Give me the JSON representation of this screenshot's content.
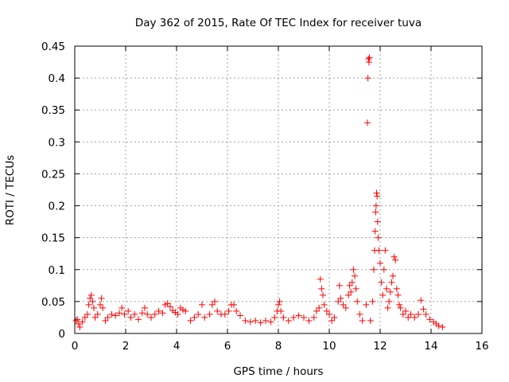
{
  "chart_data": {
    "type": "scatter",
    "title": "Day 362 of 2015, Rate Of TEC Index for receiver tuva",
    "xlabel": "GPS time / hours",
    "ylabel": "ROTI / TECUs",
    "xlim": [
      0,
      16
    ],
    "ylim": [
      0,
      0.45
    ],
    "xticks": [
      0,
      2,
      4,
      6,
      8,
      10,
      12,
      14,
      16
    ],
    "yticks": [
      0,
      0.05,
      0.1,
      0.15,
      0.2,
      0.25,
      0.3,
      0.35,
      0.4,
      0.45
    ],
    "xtick_labels": [
      "0",
      "2",
      "4",
      "6",
      "8",
      "10",
      "12",
      "14",
      "16"
    ],
    "ytick_labels": [
      "0",
      "0.05",
      "0.1",
      "0.15",
      "0.2",
      "0.25",
      "0.3",
      "0.35",
      "0.4",
      "0.45"
    ],
    "grid": true,
    "marker": "+",
    "series_color": "#ff0000",
    "series": [
      {
        "name": "ROTI",
        "points": [
          [
            0.05,
            0.02
          ],
          [
            0.1,
            0.022
          ],
          [
            0.15,
            0.015
          ],
          [
            0.2,
            0.01
          ],
          [
            0.3,
            0.018
          ],
          [
            0.4,
            0.025
          ],
          [
            0.5,
            0.03
          ],
          [
            0.55,
            0.045
          ],
          [
            0.6,
            0.055
          ],
          [
            0.65,
            0.06
          ],
          [
            0.7,
            0.05
          ],
          [
            0.75,
            0.04
          ],
          [
            0.8,
            0.025
          ],
          [
            0.9,
            0.03
          ],
          [
            1.0,
            0.045
          ],
          [
            1.05,
            0.055
          ],
          [
            1.1,
            0.04
          ],
          [
            1.2,
            0.02
          ],
          [
            1.3,
            0.025
          ],
          [
            1.45,
            0.03
          ],
          [
            1.6,
            0.028
          ],
          [
            1.75,
            0.032
          ],
          [
            1.85,
            0.04
          ],
          [
            1.95,
            0.03
          ],
          [
            2.1,
            0.035
          ],
          [
            2.2,
            0.025
          ],
          [
            2.35,
            0.03
          ],
          [
            2.5,
            0.022
          ],
          [
            2.65,
            0.032
          ],
          [
            2.75,
            0.04
          ],
          [
            2.85,
            0.03
          ],
          [
            3.0,
            0.025
          ],
          [
            3.15,
            0.03
          ],
          [
            3.3,
            0.035
          ],
          [
            3.45,
            0.032
          ],
          [
            3.55,
            0.045
          ],
          [
            3.65,
            0.047
          ],
          [
            3.75,
            0.042
          ],
          [
            3.85,
            0.036
          ],
          [
            3.95,
            0.033
          ],
          [
            4.05,
            0.03
          ],
          [
            4.15,
            0.04
          ],
          [
            4.25,
            0.037
          ],
          [
            4.35,
            0.035
          ],
          [
            4.55,
            0.02
          ],
          [
            4.7,
            0.025
          ],
          [
            4.85,
            0.03
          ],
          [
            5.0,
            0.045
          ],
          [
            5.1,
            0.025
          ],
          [
            5.3,
            0.03
          ],
          [
            5.4,
            0.045
          ],
          [
            5.5,
            0.05
          ],
          [
            5.6,
            0.035
          ],
          [
            5.75,
            0.03
          ],
          [
            5.9,
            0.03
          ],
          [
            6.05,
            0.035
          ],
          [
            6.15,
            0.045
          ],
          [
            6.25,
            0.045
          ],
          [
            6.35,
            0.035
          ],
          [
            6.5,
            0.028
          ],
          [
            6.7,
            0.02
          ],
          [
            6.9,
            0.018
          ],
          [
            7.1,
            0.02
          ],
          [
            7.3,
            0.017
          ],
          [
            7.5,
            0.02
          ],
          [
            7.7,
            0.018
          ],
          [
            7.85,
            0.025
          ],
          [
            7.95,
            0.035
          ],
          [
            8.0,
            0.045
          ],
          [
            8.05,
            0.05
          ],
          [
            8.1,
            0.035
          ],
          [
            8.2,
            0.025
          ],
          [
            8.4,
            0.02
          ],
          [
            8.6,
            0.025
          ],
          [
            8.8,
            0.028
          ],
          [
            9.0,
            0.025
          ],
          [
            9.2,
            0.02
          ],
          [
            9.4,
            0.025
          ],
          [
            9.5,
            0.035
          ],
          [
            9.6,
            0.04
          ],
          [
            9.65,
            0.085
          ],
          [
            9.7,
            0.07
          ],
          [
            9.75,
            0.06
          ],
          [
            9.8,
            0.045
          ],
          [
            9.9,
            0.035
          ],
          [
            10.0,
            0.03
          ],
          [
            10.1,
            0.02
          ],
          [
            10.2,
            0.025
          ],
          [
            10.35,
            0.05
          ],
          [
            10.4,
            0.075
          ],
          [
            10.45,
            0.055
          ],
          [
            10.55,
            0.045
          ],
          [
            10.65,
            0.04
          ],
          [
            10.75,
            0.06
          ],
          [
            10.8,
            0.075
          ],
          [
            10.85,
            0.065
          ],
          [
            10.9,
            0.08
          ],
          [
            10.95,
            0.1
          ],
          [
            11.0,
            0.09
          ],
          [
            11.05,
            0.07
          ],
          [
            11.1,
            0.05
          ],
          [
            11.2,
            0.03
          ],
          [
            11.3,
            0.02
          ],
          [
            11.45,
            0.045
          ],
          [
            11.5,
            0.33
          ],
          [
            11.52,
            0.4
          ],
          [
            11.54,
            0.43
          ],
          [
            11.56,
            0.425
          ],
          [
            11.58,
            0.432
          ],
          [
            11.62,
            0.02
          ],
          [
            11.7,
            0.05
          ],
          [
            11.75,
            0.1
          ],
          [
            11.78,
            0.13
          ],
          [
            11.8,
            0.16
          ],
          [
            11.82,
            0.19
          ],
          [
            11.84,
            0.2
          ],
          [
            11.86,
            0.22
          ],
          [
            11.88,
            0.215
          ],
          [
            11.9,
            0.175
          ],
          [
            11.92,
            0.15
          ],
          [
            11.95,
            0.13
          ],
          [
            12.0,
            0.11
          ],
          [
            12.05,
            0.08
          ],
          [
            12.1,
            0.06
          ],
          [
            12.15,
            0.1
          ],
          [
            12.2,
            0.13
          ],
          [
            12.25,
            0.07
          ],
          [
            12.3,
            0.04
          ],
          [
            12.35,
            0.05
          ],
          [
            12.4,
            0.065
          ],
          [
            12.45,
            0.08
          ],
          [
            12.5,
            0.09
          ],
          [
            12.55,
            0.12
          ],
          [
            12.6,
            0.115
          ],
          [
            12.65,
            0.07
          ],
          [
            12.7,
            0.06
          ],
          [
            12.75,
            0.045
          ],
          [
            12.8,
            0.04
          ],
          [
            12.9,
            0.03
          ],
          [
            13.0,
            0.035
          ],
          [
            13.1,
            0.025
          ],
          [
            13.2,
            0.03
          ],
          [
            13.35,
            0.025
          ],
          [
            13.5,
            0.03
          ],
          [
            13.6,
            0.052
          ],
          [
            13.7,
            0.038
          ],
          [
            13.8,
            0.03
          ],
          [
            13.95,
            0.022
          ],
          [
            14.1,
            0.018
          ],
          [
            14.2,
            0.015
          ],
          [
            14.3,
            0.012
          ],
          [
            14.45,
            0.01
          ]
        ]
      }
    ]
  }
}
